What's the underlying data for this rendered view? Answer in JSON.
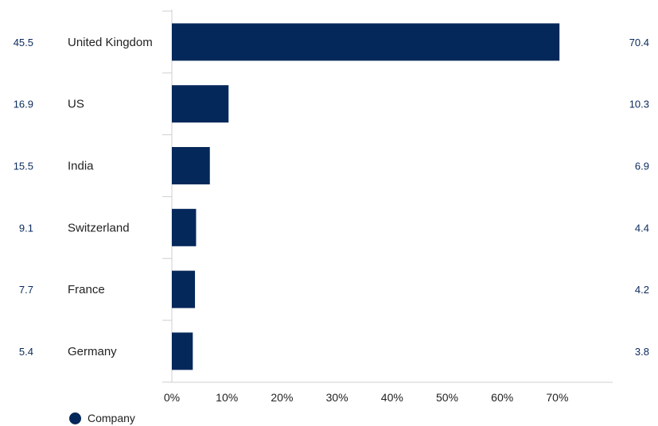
{
  "colors": {
    "bar": "#05285a",
    "axis": "#cfcfcf",
    "side_value": "#0a2a5c",
    "text": "#222222"
  },
  "legend": {
    "label": "Company",
    "icon": "circle-icon"
  },
  "chart_data": {
    "type": "bar",
    "orientation": "horizontal",
    "categories": [
      "United Kingdom",
      "US",
      "India",
      "Switzerland",
      "France",
      "Germany"
    ],
    "series": [
      {
        "name": "Company",
        "values": [
          70.4,
          10.3,
          6.9,
          4.4,
          4.2,
          3.8
        ]
      }
    ],
    "left_values": [
      45.5,
      16.9,
      15.5,
      9.1,
      7.7,
      5.4
    ],
    "right_values": [
      70.4,
      10.3,
      6.9,
      4.4,
      4.2,
      3.8
    ],
    "x_ticks": [
      "0%",
      "10%",
      "20%",
      "30%",
      "40%",
      "50%",
      "60%",
      "70%"
    ],
    "xlim": [
      0,
      80
    ],
    "grid": false,
    "legend_position": "bottom-left"
  }
}
